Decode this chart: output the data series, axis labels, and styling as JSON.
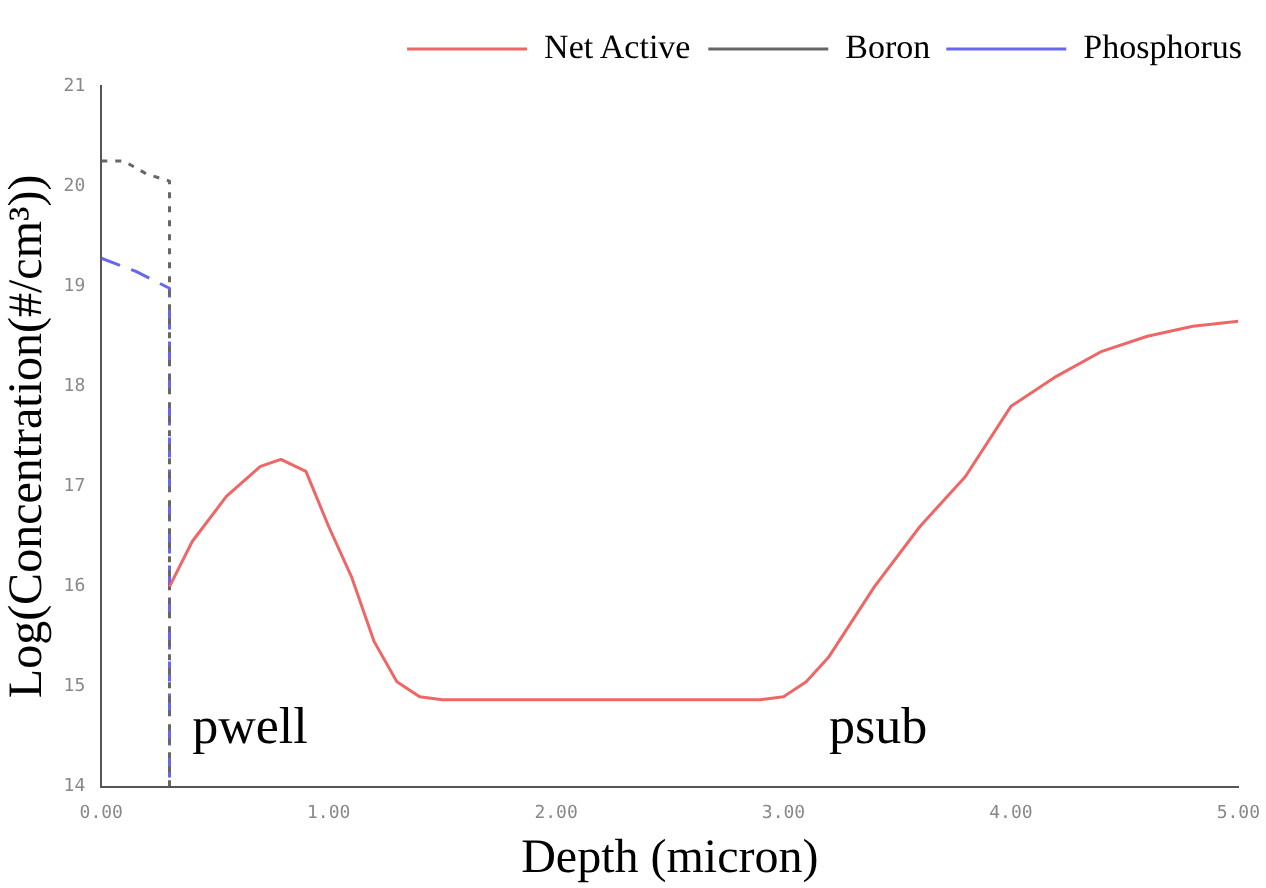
{
  "chart_data": {
    "type": "line",
    "xlabel": "Depth (micron)",
    "ylabel": "Log(Concentration(#/cm³))",
    "xlim": [
      0,
      5
    ],
    "ylim": [
      14,
      21
    ],
    "xticks": [
      {
        "value": 0,
        "label": "0.00"
      },
      {
        "value": 1,
        "label": "1.00"
      },
      {
        "value": 2,
        "label": "2.00"
      },
      {
        "value": 3,
        "label": "3.00"
      },
      {
        "value": 4,
        "label": "4.00"
      },
      {
        "value": 5,
        "label": "5.00"
      }
    ],
    "yticks": [
      14,
      15,
      16,
      17,
      18,
      19,
      20,
      21
    ],
    "legend": "top right",
    "grid": false,
    "marker": "none",
    "series": [
      {
        "name": "Net Active",
        "color": "#ee6666",
        "line_style": "solid",
        "x": [
          0.3,
          0.4,
          0.55,
          0.7,
          0.79,
          0.9,
          1.0,
          1.1,
          1.2,
          1.3,
          1.4,
          1.5,
          2.0,
          2.5,
          2.9,
          3.0,
          3.1,
          3.2,
          3.4,
          3.6,
          3.8,
          4.0,
          4.2,
          4.4,
          4.6,
          4.8,
          5.0
        ],
        "values": [
          16.0,
          16.45,
          16.9,
          17.2,
          17.27,
          17.15,
          16.6,
          16.1,
          15.45,
          15.05,
          14.9,
          14.87,
          14.87,
          14.87,
          14.87,
          14.9,
          15.05,
          15.3,
          16.0,
          16.6,
          17.1,
          17.8,
          18.1,
          18.35,
          18.5,
          18.6,
          18.65
        ]
      },
      {
        "name": "Boron",
        "color": "#666666",
        "line_style": "dotted",
        "x": [
          0,
          0.1,
          0.2,
          0.3,
          0.3
        ],
        "values": [
          20.25,
          20.25,
          20.12,
          20.05,
          14
        ]
      },
      {
        "name": "Phosphorus",
        "color": "#6666ee",
        "line_style": "dashed",
        "x": [
          0,
          0.15,
          0.3,
          0.3
        ],
        "values": [
          19.28,
          19.15,
          18.98,
          14
        ]
      }
    ],
    "annotations": [
      "pwell",
      "psub"
    ]
  }
}
